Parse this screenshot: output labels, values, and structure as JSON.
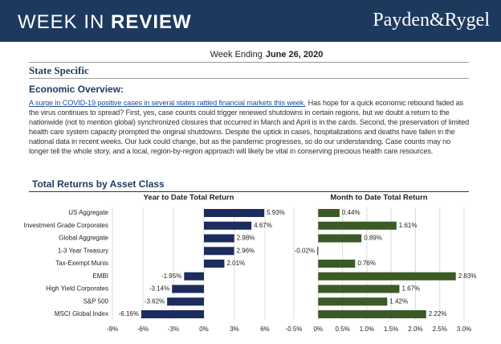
{
  "header": {
    "title_light": "WEEK IN",
    "title_bold": "REVIEW",
    "logo": "Payden&Rygel"
  },
  "week_ending": {
    "label": "Week Ending",
    "date": "June 26, 2020"
  },
  "section_title": "State Specific",
  "subsection_title": "Economic Overview:",
  "paragraph": {
    "link": "A surge in COVID-19 positive cases in several states rattled financial markets this week.",
    "text": "Has hope for a quick economic rebound faded as the virus continues to spread? First, yes, case counts could trigger renewed shutdowns in certain regions, but we doubt a return to the nationwide (not to mention global) synchronized closures that occurred in March and April is in the cards. Second, the preservation of limited health care system capacity prompted the original shutdowns. Despite the uptick in cases, hospitalizations and deaths have fallen in the national data in recent weeks. Our luck could change, but as the pandemic progresses, so do our understanding. Case counts may no longer tell the whole story, and a local, region-by-region approach will likely be vital in conserving precious health care resources."
  },
  "charts_title": "Total Returns by Asset Class",
  "chart_data": [
    {
      "type": "hbar",
      "title": "Year to Date Total Return",
      "categories": [
        "US Aggregate",
        "Investment Grade Corporates",
        "Global Aggregate",
        "1-3 Year Treasury",
        "Tax-Exempt Munis",
        "EMBI",
        "High Yield Corporates",
        "S&P 500",
        "MSCI Global Index"
      ],
      "values": [
        5.93,
        4.67,
        2.98,
        2.96,
        2.01,
        -1.95,
        -3.14,
        -3.62,
        -6.16
      ],
      "value_labels": [
        "5.93%",
        "4.67%",
        "2.98%",
        "2.96%",
        "2.01%",
        "-1.95%",
        "-3.14%",
        "-3.62%",
        "-6.16%"
      ],
      "color": "#1c2c5e",
      "xlim": [
        -9,
        6
      ],
      "xticks": [
        {
          "value": -9,
          "label": "-9%"
        },
        {
          "value": -6,
          "label": "-6%"
        },
        {
          "value": -3,
          "label": "-3%"
        },
        {
          "value": 0,
          "label": "0%"
        },
        {
          "value": 3,
          "label": "3%"
        },
        {
          "value": 6,
          "label": "6%"
        }
      ],
      "grid": true
    },
    {
      "type": "hbar",
      "title": "Month to Date Total Return",
      "values": [
        0.44,
        1.61,
        0.89,
        -0.02,
        0.76,
        2.83,
        1.67,
        1.42,
        2.22
      ],
      "value_labels": [
        "0.44%",
        "1.61%",
        "0.89%",
        "-0.02%",
        "0.76%",
        "2.83%",
        "1.67%",
        "1.42%",
        "2.22%"
      ],
      "color": "#3b5a26",
      "xlim": [
        -0.5,
        3.0
      ],
      "xticks": [
        {
          "value": -0.5,
          "label": "-0.5%"
        },
        {
          "value": 0,
          "label": "0%"
        },
        {
          "value": 0.5,
          "label": "0.5%"
        },
        {
          "value": 1.0,
          "label": "1.0%"
        },
        {
          "value": 1.5,
          "label": "1.5%"
        },
        {
          "value": 2.0,
          "label": "2.0%"
        },
        {
          "value": 2.5,
          "label": "2.5%"
        },
        {
          "value": 3.0,
          "label": "3.0%"
        }
      ],
      "grid": true
    }
  ]
}
